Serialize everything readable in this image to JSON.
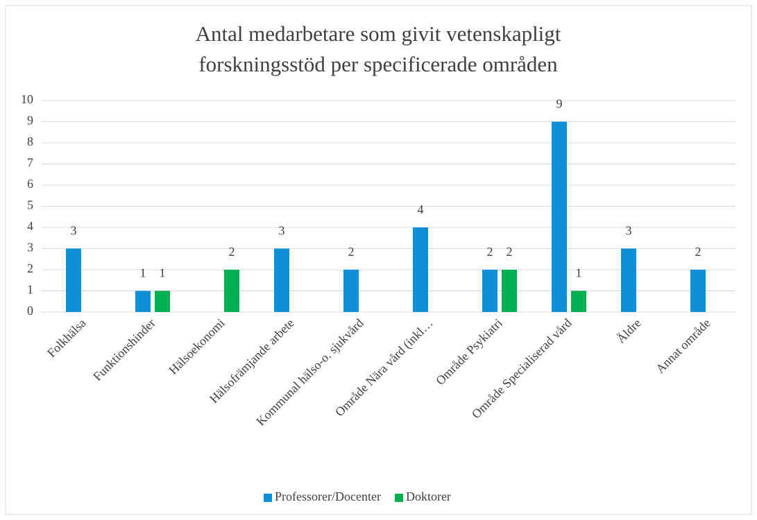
{
  "chart_data": {
    "type": "bar",
    "title": [
      "Antal medarbetare som givit vetenskapligt",
      "forskningsstöd per specificerade områden"
    ],
    "categories": [
      "Folkhälsa",
      "Funktionshinder",
      "Hälsoekonomi",
      "Hälsofrämjande arbete",
      "Kommunal hälso-o. sjukvård",
      "Område Nära vård (inkl…",
      "Område Psykiatri",
      "Område Specialiserad vård",
      "Äldre",
      "Annat område"
    ],
    "series": [
      {
        "name": "Professorer/Docenter",
        "color": "#0f8fd8",
        "values": [
          3,
          1,
          null,
          3,
          2,
          4,
          2,
          9,
          3,
          2
        ]
      },
      {
        "name": "Doktorer",
        "color": "#00b050",
        "values": [
          null,
          1,
          2,
          null,
          null,
          null,
          2,
          1,
          null,
          null
        ]
      }
    ],
    "ylim": [
      0,
      10
    ],
    "yticks": [
      0,
      1,
      2,
      3,
      4,
      5,
      6,
      7,
      8,
      9,
      10
    ],
    "grid": true,
    "legend": "bottom"
  }
}
